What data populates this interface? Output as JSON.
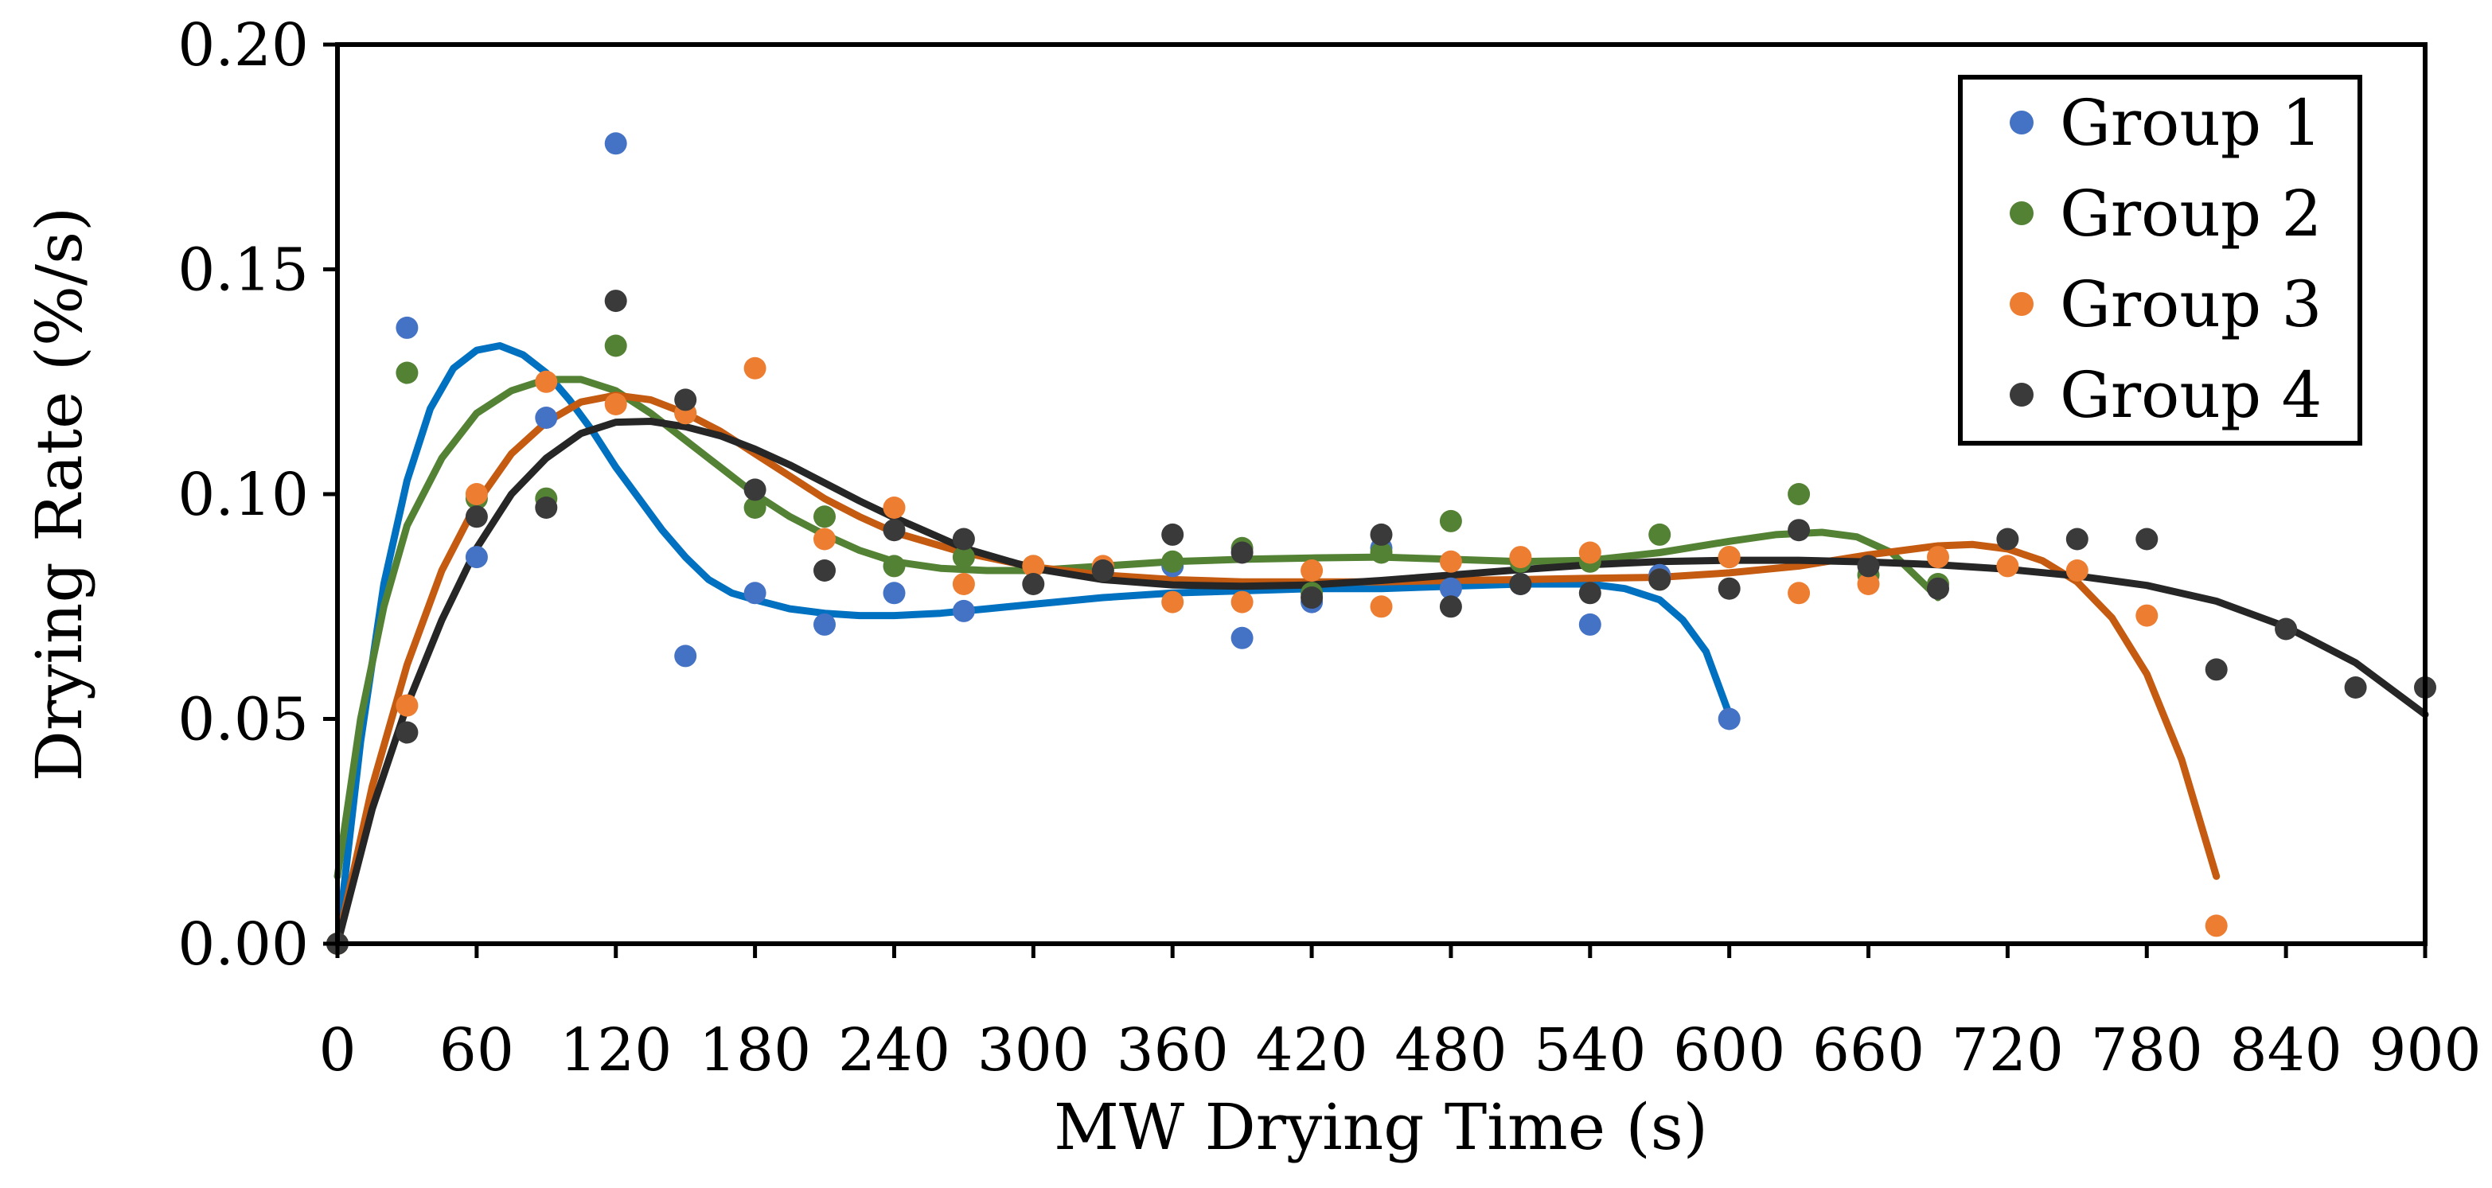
{
  "chart_data": {
    "type": "scatter",
    "title": "",
    "xlabel": "MW Drying Time (s)",
    "ylabel": "Drying Rate (%/s)",
    "xlim": [
      0,
      900
    ],
    "ylim": [
      0,
      0.2
    ],
    "xticks": [
      0,
      60,
      120,
      180,
      240,
      300,
      360,
      420,
      480,
      540,
      600,
      660,
      720,
      780,
      840,
      900
    ],
    "xtick_labels": [
      "0",
      "60",
      "120",
      "180",
      "240",
      "300",
      "360",
      "420",
      "480",
      "540",
      "600",
      "660",
      "720",
      "780",
      "840",
      "900"
    ],
    "yticks": [
      0,
      0.05,
      0.1,
      0.15,
      0.2
    ],
    "ytick_labels": [
      "0.00",
      "0.05",
      "0.10",
      "0.15",
      "0.20"
    ],
    "grid": false,
    "legend": "top-right",
    "series": [
      {
        "name": "Group 1",
        "label": "Group 1",
        "color": "#4472C4",
        "line_color": "#0070C0",
        "points": [
          [
            0,
            0.0
          ],
          [
            30,
            0.137
          ],
          [
            60,
            0.086
          ],
          [
            90,
            0.117
          ],
          [
            120,
            0.178
          ],
          [
            150,
            0.064
          ],
          [
            180,
            0.078
          ],
          [
            210,
            0.071
          ],
          [
            240,
            0.078
          ],
          [
            270,
            0.074
          ],
          [
            360,
            0.084
          ],
          [
            390,
            0.068
          ],
          [
            420,
            0.076
          ],
          [
            450,
            0.088
          ],
          [
            480,
            0.079
          ],
          [
            510,
            0.08
          ],
          [
            540,
            0.071
          ],
          [
            570,
            0.082
          ],
          [
            600,
            0.05
          ]
        ],
        "trend": [
          [
            0,
            0.0
          ],
          [
            10,
            0.045
          ],
          [
            20,
            0.08
          ],
          [
            30,
            0.103
          ],
          [
            40,
            0.119
          ],
          [
            50,
            0.128
          ],
          [
            60,
            0.132
          ],
          [
            70,
            0.133
          ],
          [
            80,
            0.131
          ],
          [
            90,
            0.127
          ],
          [
            100,
            0.121
          ],
          [
            110,
            0.114
          ],
          [
            120,
            0.106
          ],
          [
            130,
            0.099
          ],
          [
            140,
            0.092
          ],
          [
            150,
            0.086
          ],
          [
            160,
            0.081
          ],
          [
            170,
            0.078
          ],
          [
            180,
            0.0765
          ],
          [
            195,
            0.0745
          ],
          [
            210,
            0.0735
          ],
          [
            225,
            0.073
          ],
          [
            240,
            0.073
          ],
          [
            260,
            0.0735
          ],
          [
            280,
            0.0745
          ],
          [
            300,
            0.0755
          ],
          [
            330,
            0.077
          ],
          [
            360,
            0.078
          ],
          [
            390,
            0.0785
          ],
          [
            420,
            0.079
          ],
          [
            450,
            0.079
          ],
          [
            480,
            0.0795
          ],
          [
            510,
            0.08
          ],
          [
            540,
            0.08
          ],
          [
            555,
            0.079
          ],
          [
            570,
            0.0765
          ],
          [
            580,
            0.072
          ],
          [
            590,
            0.065
          ],
          [
            600,
            0.051
          ]
        ]
      },
      {
        "name": "Group 2",
        "label": "Group 2",
        "color": "#548235",
        "line_color": "#548235",
        "points": [
          [
            0,
            0.0
          ],
          [
            30,
            0.127
          ],
          [
            60,
            0.099
          ],
          [
            90,
            0.099
          ],
          [
            120,
            0.133
          ],
          [
            150,
            0.118
          ],
          [
            180,
            0.097
          ],
          [
            210,
            0.095
          ],
          [
            240,
            0.084
          ],
          [
            270,
            0.086
          ],
          [
            300,
            0.084
          ],
          [
            330,
            0.083
          ],
          [
            360,
            0.085
          ],
          [
            390,
            0.088
          ],
          [
            420,
            0.078
          ],
          [
            450,
            0.087
          ],
          [
            480,
            0.094
          ],
          [
            510,
            0.085
          ],
          [
            540,
            0.085
          ],
          [
            570,
            0.091
          ],
          [
            600,
            0.086
          ],
          [
            630,
            0.1
          ],
          [
            660,
            0.082
          ],
          [
            690,
            0.08
          ]
        ],
        "trend": [
          [
            0,
            0.015
          ],
          [
            10,
            0.05
          ],
          [
            20,
            0.075
          ],
          [
            30,
            0.093
          ],
          [
            45,
            0.108
          ],
          [
            60,
            0.118
          ],
          [
            75,
            0.123
          ],
          [
            90,
            0.1255
          ],
          [
            105,
            0.1255
          ],
          [
            120,
            0.123
          ],
          [
            135,
            0.118
          ],
          [
            150,
            0.112
          ],
          [
            165,
            0.106
          ],
          [
            180,
            0.1
          ],
          [
            195,
            0.095
          ],
          [
            210,
            0.091
          ],
          [
            225,
            0.0875
          ],
          [
            240,
            0.085
          ],
          [
            260,
            0.0835
          ],
          [
            280,
            0.083
          ],
          [
            300,
            0.083
          ],
          [
            330,
            0.084
          ],
          [
            360,
            0.085
          ],
          [
            390,
            0.0855
          ],
          [
            420,
            0.0858
          ],
          [
            450,
            0.086
          ],
          [
            480,
            0.0855
          ],
          [
            510,
            0.085
          ],
          [
            540,
            0.0853
          ],
          [
            570,
            0.087
          ],
          [
            600,
            0.0895
          ],
          [
            620,
            0.091
          ],
          [
            640,
            0.0915
          ],
          [
            655,
            0.0905
          ],
          [
            670,
            0.087
          ],
          [
            680,
            0.082
          ],
          [
            690,
            0.077
          ]
        ]
      },
      {
        "name": "Group 3",
        "label": "Group 3",
        "color": "#ED7D31",
        "line_color": "#C55A11",
        "points": [
          [
            0,
            0.0
          ],
          [
            30,
            0.053
          ],
          [
            60,
            0.1
          ],
          [
            90,
            0.125
          ],
          [
            120,
            0.12
          ],
          [
            150,
            0.118
          ],
          [
            180,
            0.128
          ],
          [
            210,
            0.09
          ],
          [
            240,
            0.097
          ],
          [
            270,
            0.08
          ],
          [
            300,
            0.084
          ],
          [
            330,
            0.084
          ],
          [
            360,
            0.076
          ],
          [
            390,
            0.076
          ],
          [
            420,
            0.083
          ],
          [
            450,
            0.075
          ],
          [
            480,
            0.085
          ],
          [
            510,
            0.086
          ],
          [
            540,
            0.087
          ],
          [
            570,
            0.081
          ],
          [
            600,
            0.086
          ],
          [
            630,
            0.078
          ],
          [
            660,
            0.08
          ],
          [
            690,
            0.086
          ],
          [
            720,
            0.084
          ],
          [
            750,
            0.083
          ],
          [
            780,
            0.073
          ],
          [
            810,
            0.004
          ]
        ],
        "trend": [
          [
            0,
            0.0
          ],
          [
            15,
            0.035
          ],
          [
            30,
            0.062
          ],
          [
            45,
            0.083
          ],
          [
            60,
            0.098
          ],
          [
            75,
            0.109
          ],
          [
            90,
            0.116
          ],
          [
            105,
            0.1205
          ],
          [
            120,
            0.122
          ],
          [
            135,
            0.121
          ],
          [
            150,
            0.118
          ],
          [
            165,
            0.114
          ],
          [
            180,
            0.109
          ],
          [
            195,
            0.104
          ],
          [
            210,
            0.099
          ],
          [
            225,
            0.095
          ],
          [
            240,
            0.0915
          ],
          [
            270,
            0.087
          ],
          [
            300,
            0.0838
          ],
          [
            330,
            0.082
          ],
          [
            360,
            0.081
          ],
          [
            390,
            0.0805
          ],
          [
            420,
            0.0805
          ],
          [
            450,
            0.0805
          ],
          [
            480,
            0.0808
          ],
          [
            510,
            0.081
          ],
          [
            540,
            0.0813
          ],
          [
            570,
            0.0815
          ],
          [
            600,
            0.0825
          ],
          [
            630,
            0.084
          ],
          [
            660,
            0.0865
          ],
          [
            690,
            0.0885
          ],
          [
            705,
            0.0888
          ],
          [
            720,
            0.0878
          ],
          [
            735,
            0.0852
          ],
          [
            750,
            0.0805
          ],
          [
            765,
            0.0725
          ],
          [
            780,
            0.06
          ],
          [
            795,
            0.041
          ],
          [
            810,
            0.015
          ]
        ]
      },
      {
        "name": "Group 4",
        "label": "Group 4",
        "color": "#3A3A3A",
        "line_color": "#262626",
        "points": [
          [
            0,
            0.0
          ],
          [
            30,
            0.047
          ],
          [
            60,
            0.095
          ],
          [
            90,
            0.097
          ],
          [
            120,
            0.143
          ],
          [
            150,
            0.121
          ],
          [
            180,
            0.101
          ],
          [
            210,
            0.083
          ],
          [
            240,
            0.092
          ],
          [
            270,
            0.09
          ],
          [
            300,
            0.08
          ],
          [
            330,
            0.083
          ],
          [
            360,
            0.091
          ],
          [
            390,
            0.087
          ],
          [
            420,
            0.077
          ],
          [
            450,
            0.091
          ],
          [
            480,
            0.075
          ],
          [
            510,
            0.08
          ],
          [
            540,
            0.078
          ],
          [
            570,
            0.081
          ],
          [
            600,
            0.079
          ],
          [
            630,
            0.092
          ],
          [
            660,
            0.084
          ],
          [
            690,
            0.079
          ],
          [
            720,
            0.09
          ],
          [
            750,
            0.09
          ],
          [
            780,
            0.09
          ],
          [
            810,
            0.061
          ],
          [
            840,
            0.07
          ],
          [
            870,
            0.057
          ],
          [
            900,
            0.057
          ]
        ],
        "trend": [
          [
            0,
            0.0
          ],
          [
            15,
            0.03
          ],
          [
            30,
            0.053
          ],
          [
            45,
            0.072
          ],
          [
            60,
            0.088
          ],
          [
            75,
            0.1
          ],
          [
            90,
            0.108
          ],
          [
            105,
            0.1135
          ],
          [
            120,
            0.116
          ],
          [
            135,
            0.1162
          ],
          [
            150,
            0.115
          ],
          [
            165,
            0.113
          ],
          [
            180,
            0.11
          ],
          [
            195,
            0.1065
          ],
          [
            210,
            0.1025
          ],
          [
            225,
            0.0985
          ],
          [
            240,
            0.0948
          ],
          [
            270,
            0.088
          ],
          [
            300,
            0.0835
          ],
          [
            330,
            0.081
          ],
          [
            360,
            0.0798
          ],
          [
            390,
            0.0795
          ],
          [
            420,
            0.0798
          ],
          [
            450,
            0.0808
          ],
          [
            480,
            0.082
          ],
          [
            510,
            0.0832
          ],
          [
            540,
            0.0843
          ],
          [
            570,
            0.085
          ],
          [
            600,
            0.0853
          ],
          [
            630,
            0.0853
          ],
          [
            660,
            0.0849
          ],
          [
            690,
            0.0843
          ],
          [
            720,
            0.0833
          ],
          [
            750,
            0.0818
          ],
          [
            780,
            0.0797
          ],
          [
            810,
            0.0762
          ],
          [
            840,
            0.0705
          ],
          [
            870,
            0.0625
          ],
          [
            900,
            0.051
          ]
        ]
      }
    ]
  }
}
